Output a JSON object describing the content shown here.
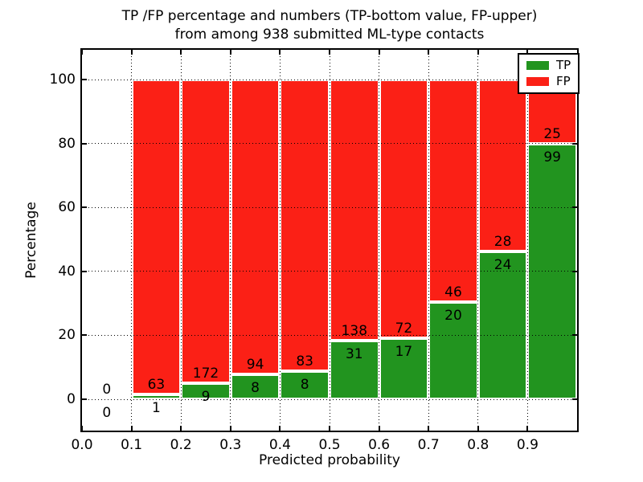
{
  "title": {
    "line1": "TP /FP percentage and numbers (TP-bottom value, FP-upper)",
    "line2": "from among 938 submitted ML-type contacts"
  },
  "chart_data": {
    "type": "bar",
    "stacked": true,
    "title": "TP /FP percentage and numbers (TP-bottom value, FP-upper) from among 938 submitted ML-type contacts",
    "xlabel": "Predicted probability",
    "ylabel": "Percentage",
    "categories": [
      "0.0-0.1",
      "0.1-0.2",
      "0.2-0.3",
      "0.3-0.4",
      "0.4-0.5",
      "0.5-0.6",
      "0.6-0.7",
      "0.7-0.8",
      "0.8-0.9",
      "0.9-1.0"
    ],
    "bin_start": 0.0,
    "bin_width": 0.1,
    "series": [
      {
        "name": "TP",
        "color": "#22941f",
        "counts": [
          0,
          1,
          9,
          8,
          8,
          31,
          17,
          20,
          24,
          99
        ]
      },
      {
        "name": "FP",
        "color": "#fb2016",
        "counts": [
          0,
          63,
          172,
          94,
          83,
          138,
          72,
          46,
          28,
          25
        ]
      }
    ],
    "tp_percent_of_bin": [
      0,
      1.6,
      5.0,
      7.8,
      8.8,
      18.3,
      19.1,
      30.3,
      46.2,
      79.8
    ],
    "bars_total_percent": 100,
    "x_tick_values": [
      0.0,
      0.1,
      0.2,
      0.3,
      0.4,
      0.5,
      0.6,
      0.7,
      0.8,
      0.9
    ],
    "x_tick_labels": [
      "0.0",
      "0.1",
      "0.2",
      "0.3",
      "0.4",
      "0.5",
      "0.6",
      "0.7",
      "0.8",
      "0.9"
    ],
    "y_tick_values": [
      0,
      20,
      40,
      60,
      80,
      100
    ],
    "y_tick_labels": [
      "0",
      "20",
      "40",
      "60",
      "80",
      "100"
    ],
    "xlim": [
      0.0,
      1.0
    ],
    "ylim": [
      -10.5,
      109.6
    ],
    "grid": "dotted",
    "legend": {
      "position": "upper right",
      "items": [
        {
          "label": "TP",
          "color": "#22941f"
        },
        {
          "label": "FP",
          "color": "#fb2016"
        }
      ]
    }
  }
}
